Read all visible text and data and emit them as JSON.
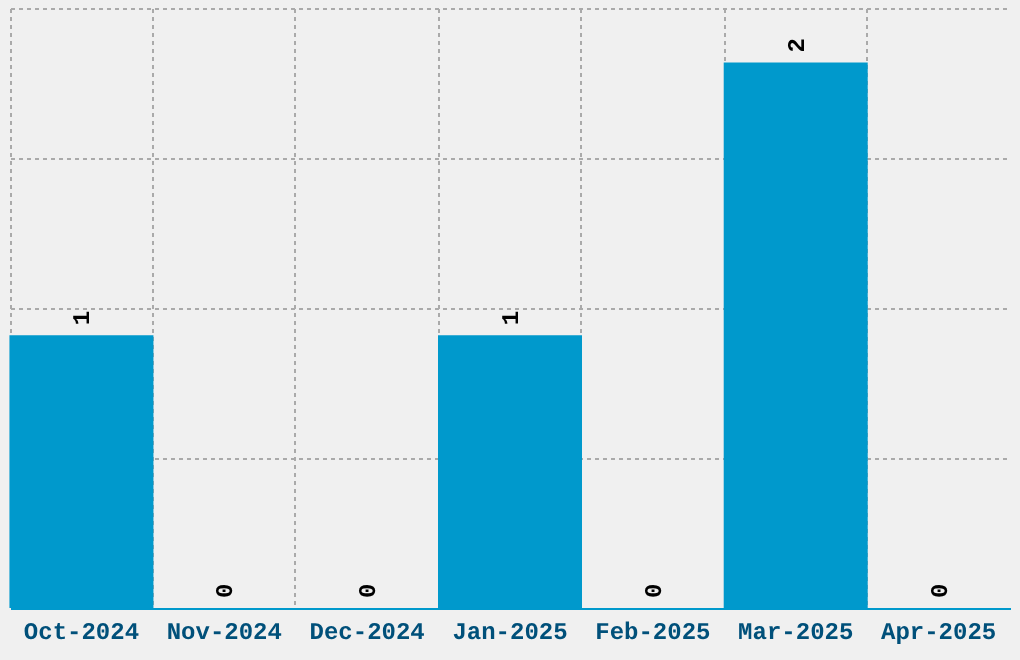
{
  "chart_data": {
    "type": "bar",
    "categories": [
      "Oct-2024",
      "Nov-2024",
      "Dec-2024",
      "Jan-2025",
      "Feb-2025",
      "Mar-2025",
      "Apr-2025"
    ],
    "values": [
      1,
      0,
      0,
      1,
      0,
      2,
      0
    ],
    "color": "#0099cc",
    "ylim": [
      0,
      2.2
    ],
    "yticks": [
      {
        "value": 0,
        "label": null
      },
      {
        "value": 0.55,
        "label": null
      },
      {
        "value": 1.1,
        "label": null
      },
      {
        "value": 1.65,
        "label": null
      },
      {
        "value": 2.2,
        "label": null
      }
    ],
    "grid": true,
    "data_labels": true,
    "tick_labels": "x"
  }
}
